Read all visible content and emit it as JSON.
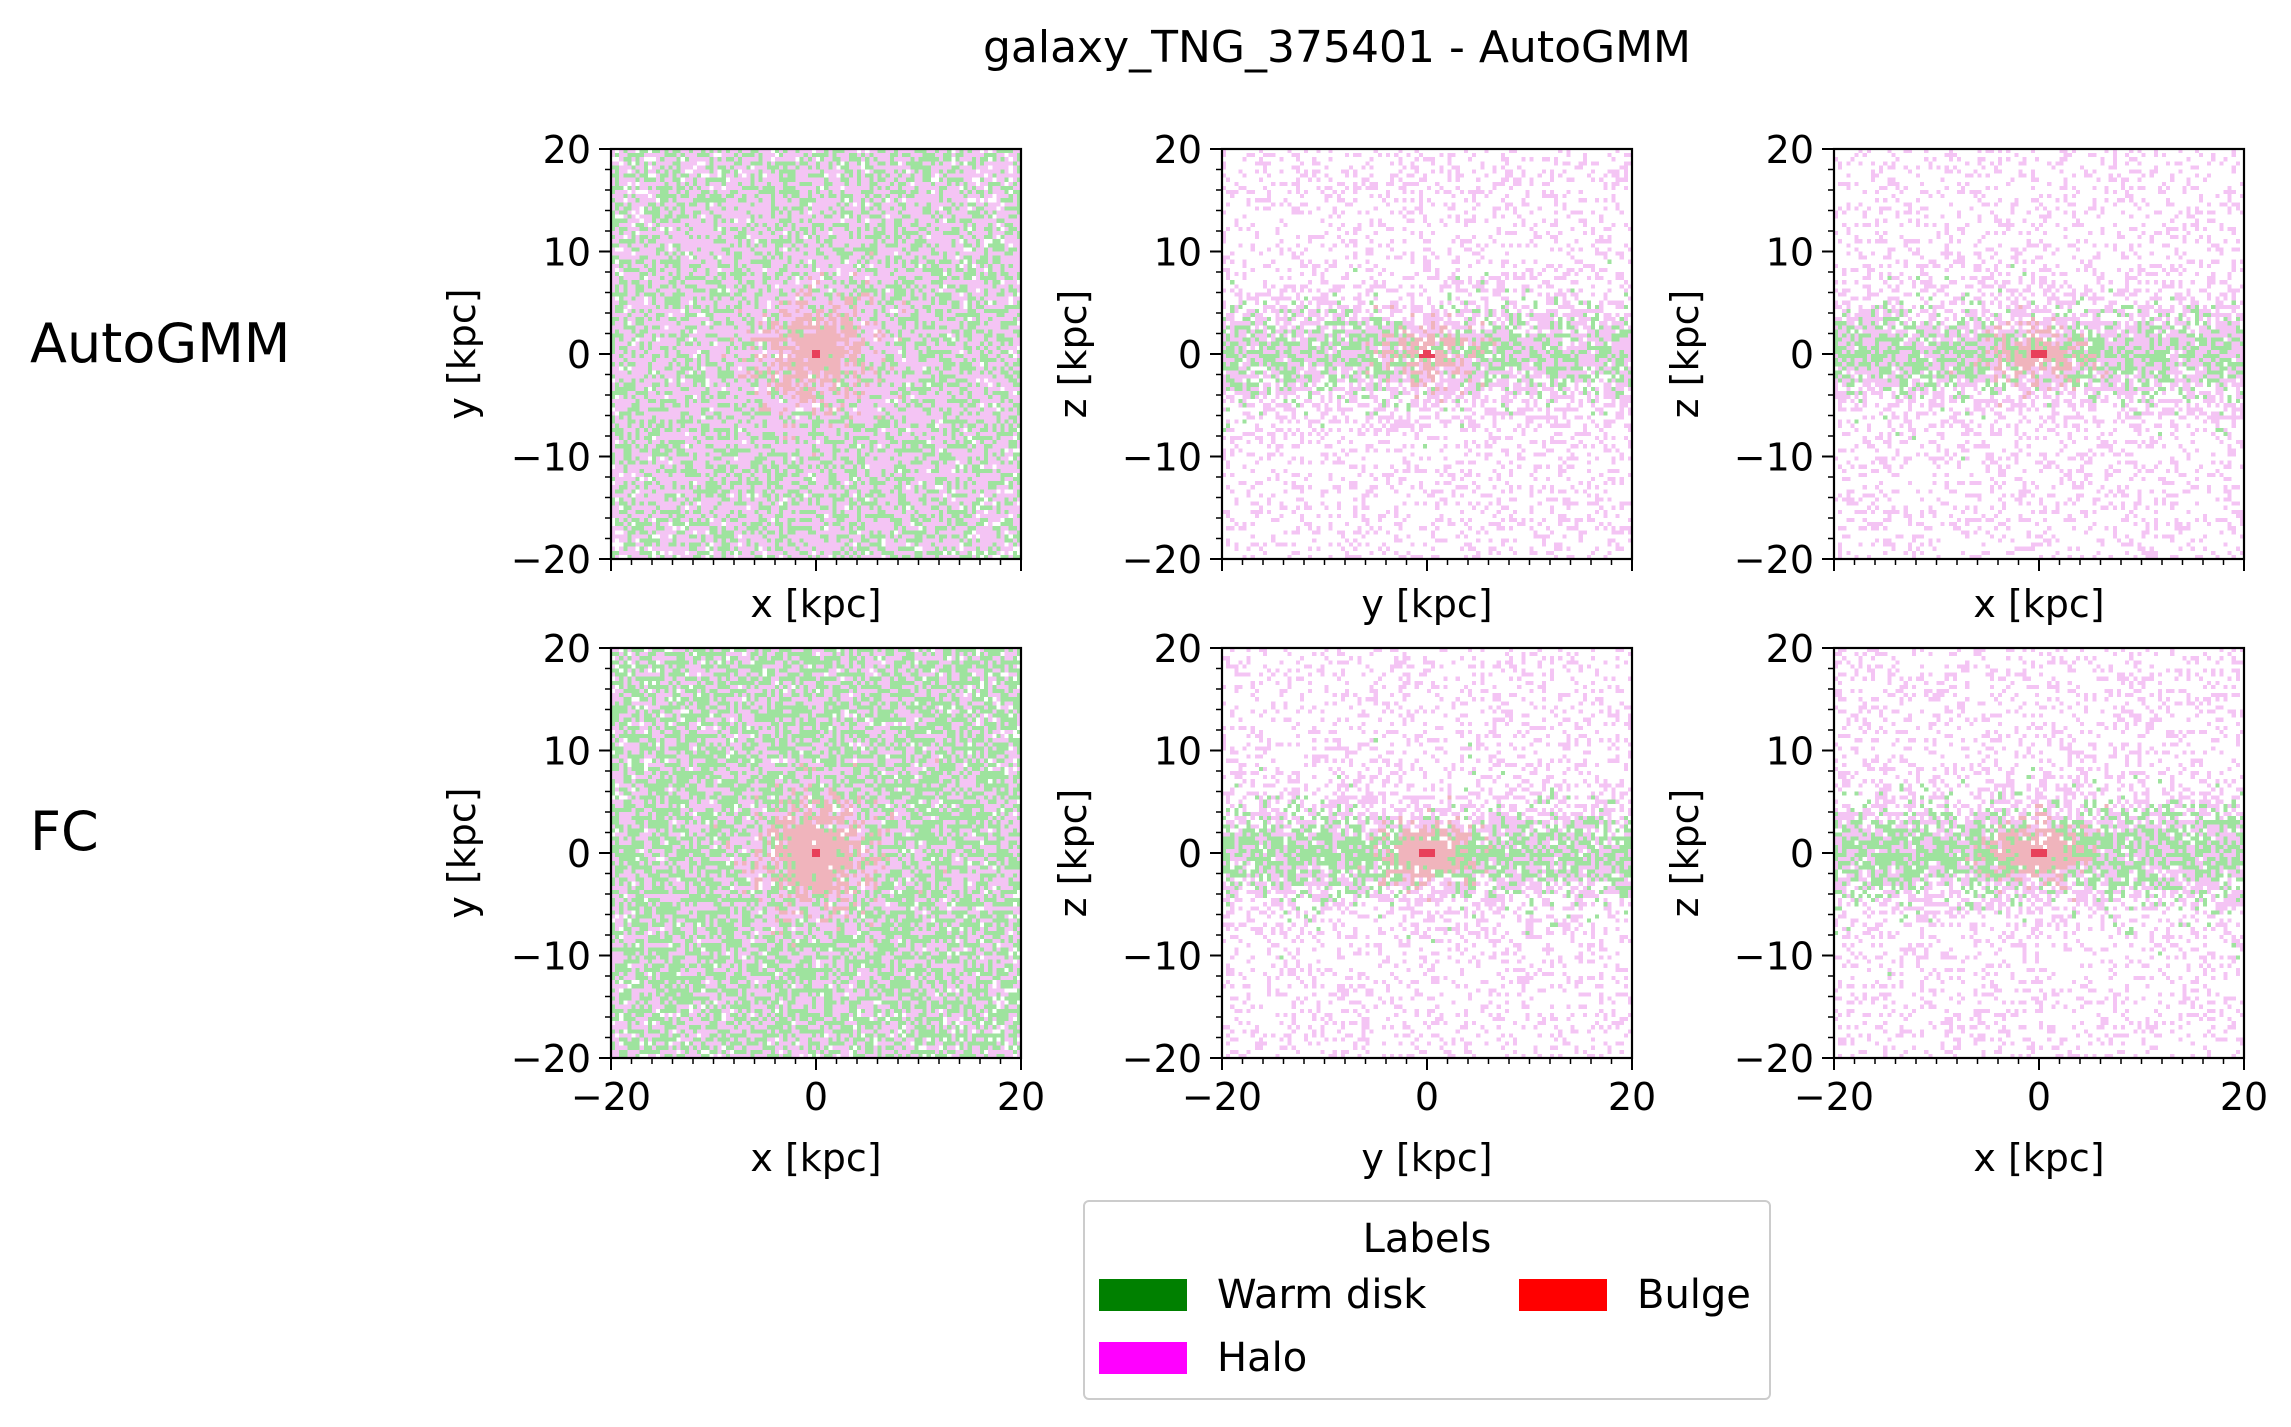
{
  "chart_data": {
    "type": "heatmap",
    "title": "galaxy_TNG_375401 - AutoGMM",
    "row_labels": [
      "AutoGMM",
      "FC"
    ],
    "panels": [
      {
        "row": 0,
        "col": 0,
        "projection": "x-y",
        "xlabel": "x [kpc]",
        "ylabel": "y [kpc]",
        "xlim": [
          -20,
          20
        ],
        "ylim": [
          -20,
          20
        ],
        "show_xticklabels": false
      },
      {
        "row": 0,
        "col": 1,
        "projection": "y-z",
        "xlabel": "y [kpc]",
        "ylabel": "z [kpc]",
        "xlim": [
          -20,
          20
        ],
        "ylim": [
          -20,
          20
        ],
        "show_xticklabels": false
      },
      {
        "row": 0,
        "col": 2,
        "projection": "x-z",
        "xlabel": "x [kpc]",
        "ylabel": "z [kpc]",
        "xlim": [
          -20,
          20
        ],
        "ylim": [
          -20,
          20
        ],
        "show_xticklabels": false
      },
      {
        "row": 1,
        "col": 0,
        "projection": "x-y",
        "xlabel": "x [kpc]",
        "ylabel": "y [kpc]",
        "xlim": [
          -20,
          20
        ],
        "ylim": [
          -20,
          20
        ],
        "show_xticklabels": true
      },
      {
        "row": 1,
        "col": 1,
        "projection": "y-z",
        "xlabel": "y [kpc]",
        "ylabel": "z [kpc]",
        "xlim": [
          -20,
          20
        ],
        "ylim": [
          -20,
          20
        ],
        "show_xticklabels": true
      },
      {
        "row": 1,
        "col": 2,
        "projection": "x-z",
        "xlabel": "x [kpc]",
        "ylabel": "z [kpc]",
        "xlim": [
          -20,
          20
        ],
        "ylim": [
          -20,
          20
        ],
        "show_xticklabels": true
      }
    ],
    "xticks": [
      -20,
      0,
      20
    ],
    "yticks": [
      -20,
      -10,
      0,
      10,
      20
    ],
    "xtick_labels": [
      "−20",
      "0",
      "20"
    ],
    "ytick_labels": [
      "−20",
      "−10",
      "0",
      "10",
      "20"
    ],
    "legend": {
      "title": "Labels",
      "placement": "bottom-center",
      "entries": [
        {
          "name": "Warm disk",
          "color": "#008000"
        },
        {
          "name": "Bulge",
          "color": "#ff0000"
        },
        {
          "name": "Halo",
          "color": "#ff00ff"
        }
      ]
    },
    "colors": {
      "warm_disk_tint": "#9ee39e",
      "halo_tint": "#f4c4f4",
      "bulge_tint": "#f0b4bc",
      "bulge_core": "#e8405a"
    }
  }
}
